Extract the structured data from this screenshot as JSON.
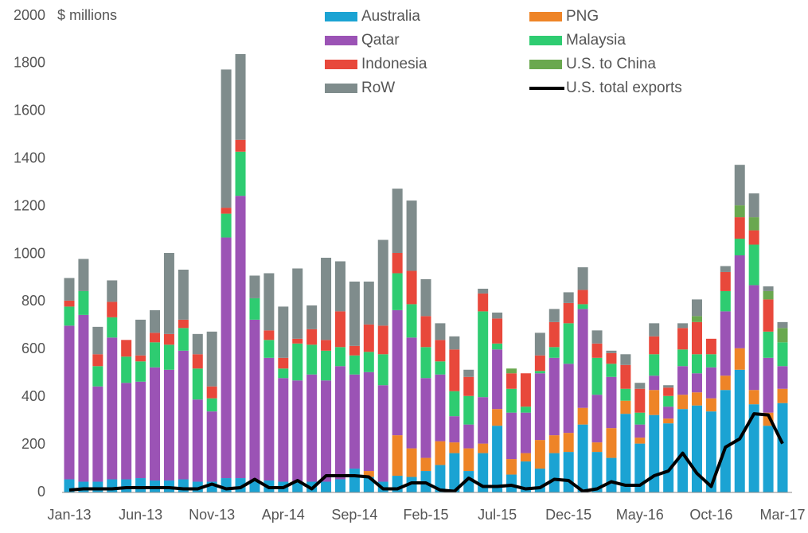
{
  "chart_data": {
    "type": "bar",
    "stacked": true,
    "y_label": "$ millions",
    "categories": [
      "Jan-13",
      null,
      null,
      null,
      null,
      "Jun-13",
      null,
      null,
      null,
      null,
      "Nov-13",
      null,
      null,
      null,
      null,
      "Apr-14",
      null,
      null,
      null,
      null,
      "Sep-14",
      null,
      null,
      null,
      null,
      "Feb-15",
      null,
      null,
      null,
      null,
      "Jul-15",
      null,
      null,
      null,
      null,
      "Dec-15",
      null,
      null,
      null,
      null,
      "May-16",
      null,
      null,
      null,
      null,
      "Oct-16",
      null,
      null,
      null,
      null,
      "Mar-17"
    ],
    "ylim": [
      0,
      2000
    ],
    "yticks": [
      0,
      200,
      400,
      600,
      800,
      1000,
      1200,
      1400,
      1600,
      1800,
      2000
    ],
    "series": [
      {
        "name": "Australia",
        "color": "#1ba3d3",
        "values": [
          55,
          45,
          45,
          55,
          55,
          60,
          50,
          50,
          55,
          45,
          45,
          60,
          60,
          50,
          50,
          45,
          45,
          45,
          45,
          55,
          100,
          65,
          45,
          70,
          65,
          90,
          115,
          165,
          90,
          165,
          280,
          75,
          130,
          100,
          165,
          170,
          285,
          170,
          145,
          330,
          205,
          325,
          290,
          350,
          365,
          340,
          430,
          515,
          370,
          280,
          375
        ]
      },
      {
        "name": "PNG",
        "color": "#ee8427",
        "values": [
          0,
          0,
          0,
          0,
          0,
          0,
          0,
          0,
          0,
          0,
          0,
          0,
          0,
          0,
          0,
          0,
          0,
          0,
          0,
          0,
          0,
          25,
          0,
          170,
          120,
          55,
          100,
          45,
          95,
          40,
          70,
          65,
          35,
          120,
          75,
          80,
          70,
          40,
          125,
          55,
          25,
          105,
          20,
          60,
          55,
          55,
          60,
          90,
          60,
          55,
          60
        ]
      },
      {
        "name": "Qatar",
        "color": "#9b53b5",
        "values": [
          645,
          700,
          400,
          595,
          405,
          405,
          475,
          465,
          540,
          345,
          295,
          1010,
          1185,
          675,
          515,
          435,
          425,
          450,
          425,
          475,
          395,
          415,
          405,
          525,
          465,
          335,
          280,
          110,
          100,
          195,
          250,
          195,
          170,
          280,
          325,
          290,
          415,
          200,
          215,
          0,
          55,
          60,
          50,
          120,
          80,
          130,
          270,
          390,
          440,
          230,
          95
        ]
      },
      {
        "name": "Malaysia",
        "color": "#2ecc71",
        "values": [
          80,
          100,
          85,
          85,
          110,
          85,
          105,
          105,
          95,
          130,
          55,
          100,
          185,
          90,
          75,
          40,
          155,
          125,
          125,
          80,
          80,
          85,
          130,
          155,
          140,
          130,
          55,
          105,
          120,
          360,
          25,
          100,
          25,
          10,
          45,
          170,
          20,
          155,
          55,
          50,
          50,
          90,
          45,
          70,
          80,
          55,
          85,
          70,
          170,
          110,
          100
        ]
      },
      {
        "name": "Indonesia",
        "color": "#e8483b",
        "values": [
          25,
          0,
          50,
          65,
          70,
          25,
          40,
          45,
          35,
          60,
          50,
          25,
          50,
          0,
          40,
          45,
          20,
          65,
          45,
          150,
          40,
          115,
          120,
          85,
          140,
          130,
          90,
          175,
          80,
          75,
          105,
          65,
          140,
          65,
          105,
          85,
          60,
          60,
          45,
          100,
          100,
          75,
          35,
          90,
          135,
          65,
          80,
          90,
          60,
          135,
          0
        ]
      },
      {
        "name": "U.S. to China",
        "color": "#6aa84f",
        "values": [
          0,
          0,
          0,
          0,
          0,
          0,
          0,
          0,
          0,
          0,
          0,
          0,
          0,
          0,
          0,
          0,
          0,
          0,
          0,
          0,
          0,
          0,
          0,
          0,
          0,
          0,
          0,
          0,
          0,
          0,
          0,
          20,
          0,
          0,
          0,
          0,
          0,
          0,
          0,
          0,
          0,
          0,
          0,
          0,
          25,
          0,
          0,
          50,
          55,
          35,
          60
        ]
      },
      {
        "name": "RoW",
        "color": "#7f8c8c",
        "values": [
          95,
          135,
          115,
          90,
          0,
          150,
          95,
          340,
          210,
          85,
          230,
          580,
          360,
          95,
          240,
          215,
          295,
          100,
          345,
          210,
          270,
          180,
          360,
          270,
          295,
          155,
          70,
          55,
          30,
          20,
          25,
          0,
          0,
          95,
          55,
          45,
          95,
          55,
          10,
          45,
          25,
          55,
          10,
          20,
          70,
          0,
          25,
          170,
          100,
          20,
          25
        ]
      },
      {
        "name": "U.S. total exports",
        "type": "line",
        "color": "#000000",
        "values": [
          10,
          15,
          15,
          15,
          20,
          20,
          20,
          20,
          15,
          15,
          35,
          15,
          20,
          55,
          20,
          20,
          50,
          15,
          70,
          70,
          70,
          65,
          15,
          15,
          40,
          40,
          10,
          5,
          60,
          25,
          25,
          30,
          15,
          20,
          55,
          50,
          5,
          15,
          45,
          30,
          30,
          70,
          90,
          165,
          80,
          25,
          190,
          225,
          330,
          325,
          205
        ]
      }
    ]
  }
}
